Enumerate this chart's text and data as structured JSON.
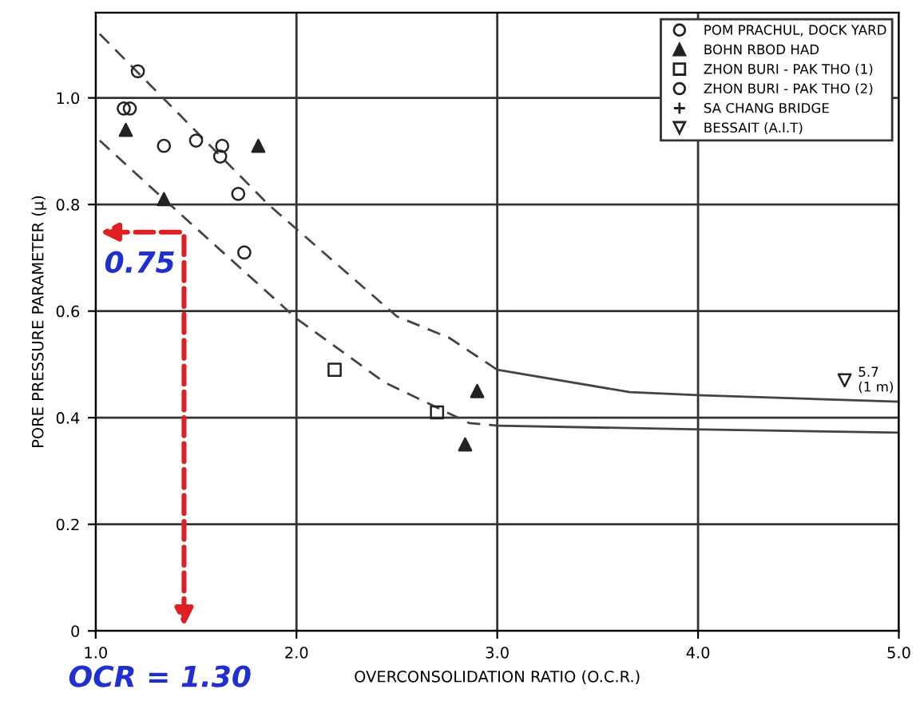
{
  "chart_data": {
    "type": "scatter",
    "xlabel": "OVERCONSOLIDATION RATIO (O.C.R.)",
    "ylabel": "PORE PRESSURE PARAMETER (μ)",
    "xlim": [
      1.0,
      5.0
    ],
    "ylim": [
      0,
      1.16
    ],
    "xticks": [
      {
        "value": 1,
        "label": "1.0"
      },
      {
        "value": 2,
        "label": "2.0"
      },
      {
        "value": 3,
        "label": "3.0"
      },
      {
        "value": 4,
        "label": "4.0"
      },
      {
        "value": 5,
        "label": "5.0"
      }
    ],
    "yticks": [
      0,
      0.2,
      0.4,
      0.6,
      0.8,
      {
        "value": 1,
        "label": "1.0"
      }
    ],
    "grid": true,
    "legend": "top right",
    "series": [
      {
        "name": "POM PRACHUL, DOCK YARD",
        "marker": "circle",
        "color": "#222222",
        "x": [
          1.21,
          1.34,
          1.5,
          1.63,
          1.62,
          1.71,
          1.74
        ],
        "values": [
          1.05,
          0.91,
          0.92,
          0.91,
          0.89,
          0.82,
          0.71
        ]
      },
      {
        "name": "BOHN RBOD HAD",
        "marker": "triangle",
        "color": "#222222",
        "x": [
          1.15,
          1.81,
          1.34,
          2.9,
          2.84
        ],
        "values": [
          0.94,
          0.91,
          0.81,
          0.45,
          0.35
        ]
      },
      {
        "name": "ZHON BURI - PAK THO (1)",
        "marker": "square",
        "color": "#222222",
        "x": [
          2.19,
          2.7
        ],
        "values": [
          0.49,
          0.41
        ]
      },
      {
        "name": "ZHON BURI - PAK THO (2)",
        "marker": "circle",
        "color": "#222222",
        "x": [
          1.14,
          1.17
        ],
        "values": [
          0.98,
          0.98
        ]
      },
      {
        "name": "SA CHANG BRIDGE",
        "marker": "cross",
        "color": "#222222"
      },
      {
        "name": "BESSAIT (A.I.T)",
        "marker": "triangle_down",
        "color": "#222222",
        "x": [
          4.73
        ],
        "values": [
          0.47
        ]
      },
      {
        "type": "line",
        "line_style": "dashed",
        "color": "#444444",
        "x": [
          1.02,
          1.86,
          2.5,
          2.76,
          3.0
        ],
        "values": [
          1.12,
          0.8,
          0.59,
          0.55,
          0.49
        ]
      },
      {
        "type": "line",
        "line_style": "solid",
        "color": "#444444",
        "x": [
          3.0,
          3.66,
          4.02,
          5.0
        ],
        "values": [
          0.49,
          0.448,
          0.442,
          0.43
        ]
      },
      {
        "type": "line",
        "line_style": "dashed",
        "color": "#444444",
        "x": [
          1.02,
          1.34,
          2.0,
          2.44,
          2.86,
          3.0
        ],
        "values": [
          0.92,
          0.81,
          0.586,
          0.466,
          0.39,
          0.385
        ]
      },
      {
        "type": "line",
        "line_style": "solid",
        "color": "#444444",
        "x": [
          3.0,
          4.02,
          5.0
        ],
        "values": [
          0.385,
          0.378,
          0.372
        ]
      }
    ],
    "annotations": [
      "0.75",
      "OCR = 1.30",
      {
        "text": "5.7\n(1 m)",
        "x": 4.73,
        "y": 0.47
      }
    ]
  }
}
